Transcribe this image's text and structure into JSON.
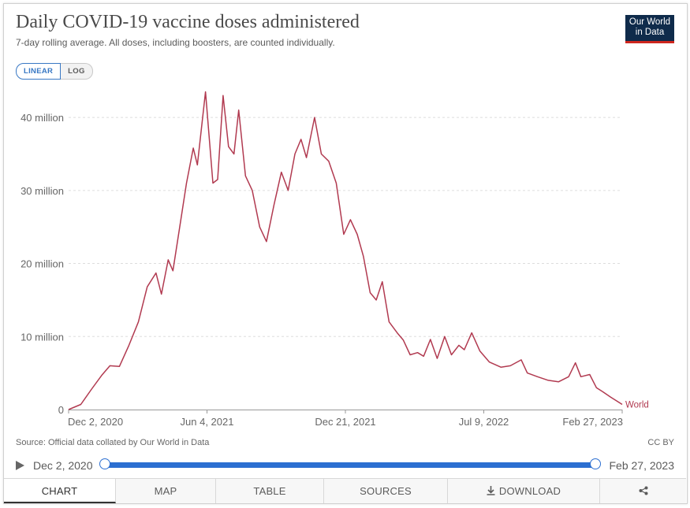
{
  "header": {
    "title": "Daily COVID-19 vaccine doses administered",
    "subtitle": "7-day rolling average. All doses, including boosters, are counted individually.",
    "logo_line1": "Our World",
    "logo_line2": "in Data"
  },
  "scale_toggle": {
    "linear": "LINEAR",
    "log": "LOG",
    "selected": "LINEAR"
  },
  "footer": {
    "source": "Source: Official data collated by Our World in Data",
    "license": "CC BY"
  },
  "timeline": {
    "start": "Dec 2, 2020",
    "end": "Feb 27, 2023"
  },
  "tabs": {
    "chart": "CHART",
    "map": "MAP",
    "table": "TABLE",
    "sources": "SOURCES",
    "download": "DOWNLOAD",
    "share_icon": "share-icon",
    "download_icon": "download-icon"
  },
  "colors": {
    "series": "#b13a50",
    "accent": "#2c6fd1",
    "grid": "#dddddd"
  },
  "chart_data": {
    "type": "line",
    "title": "Daily COVID-19 vaccine doses administered",
    "y_ticks": [
      {
        "value": 0,
        "label": "0"
      },
      {
        "value": 10000000,
        "label": "10 million"
      },
      {
        "value": 20000000,
        "label": "20 million"
      },
      {
        "value": 30000000,
        "label": "30 million"
      },
      {
        "value": 40000000,
        "label": "40 million"
      }
    ],
    "x_ticks": [
      "Dec 2, 2020",
      "Jun 4, 2021",
      "Dec 21, 2021",
      "Jul 9, 2022",
      "Feb 27, 2023"
    ],
    "ylim": [
      0,
      44000000
    ],
    "xlim": [
      "2020-12-02",
      "2023-02-27"
    ],
    "grid": "horizontal dashed",
    "series": [
      {
        "name": "World",
        "points": [
          [
            "2020-12-02",
            0
          ],
          [
            "2020-12-20",
            700000
          ],
          [
            "2021-01-05",
            2800000
          ],
          [
            "2021-01-20",
            4700000
          ],
          [
            "2021-02-01",
            6000000
          ],
          [
            "2021-02-15",
            5900000
          ],
          [
            "2021-03-01",
            8800000
          ],
          [
            "2021-03-15",
            12000000
          ],
          [
            "2021-03-28",
            16800000
          ],
          [
            "2021-04-10",
            18700000
          ],
          [
            "2021-04-18",
            15800000
          ],
          [
            "2021-04-28",
            20500000
          ],
          [
            "2021-05-05",
            19000000
          ],
          [
            "2021-05-15",
            25000000
          ],
          [
            "2021-05-25",
            31000000
          ],
          [
            "2021-06-04",
            35800000
          ],
          [
            "2021-06-10",
            33500000
          ],
          [
            "2021-06-22",
            43500000
          ],
          [
            "2021-07-03",
            31000000
          ],
          [
            "2021-07-10",
            31500000
          ],
          [
            "2021-07-18",
            43000000
          ],
          [
            "2021-07-26",
            36000000
          ],
          [
            "2021-08-03",
            35000000
          ],
          [
            "2021-08-10",
            41000000
          ],
          [
            "2021-08-20",
            32000000
          ],
          [
            "2021-08-30",
            30000000
          ],
          [
            "2021-09-10",
            25000000
          ],
          [
            "2021-09-20",
            23000000
          ],
          [
            "2021-10-01",
            28000000
          ],
          [
            "2021-10-12",
            32500000
          ],
          [
            "2021-10-22",
            30000000
          ],
          [
            "2021-11-01",
            35000000
          ],
          [
            "2021-11-10",
            37000000
          ],
          [
            "2021-11-18",
            34500000
          ],
          [
            "2021-11-30",
            40000000
          ],
          [
            "2021-12-10",
            35000000
          ],
          [
            "2021-12-21",
            34000000
          ],
          [
            "2022-01-01",
            31000000
          ],
          [
            "2022-01-12",
            24000000
          ],
          [
            "2022-01-22",
            26000000
          ],
          [
            "2022-02-01",
            24000000
          ],
          [
            "2022-02-10",
            21000000
          ],
          [
            "2022-02-20",
            16000000
          ],
          [
            "2022-03-01",
            15000000
          ],
          [
            "2022-03-10",
            17500000
          ],
          [
            "2022-03-20",
            12000000
          ],
          [
            "2022-04-01",
            10500000
          ],
          [
            "2022-04-10",
            9500000
          ],
          [
            "2022-04-20",
            7500000
          ],
          [
            "2022-05-01",
            7800000
          ],
          [
            "2022-05-10",
            7300000
          ],
          [
            "2022-05-20",
            9600000
          ],
          [
            "2022-05-30",
            7000000
          ],
          [
            "2022-06-10",
            10000000
          ],
          [
            "2022-06-20",
            7500000
          ],
          [
            "2022-07-01",
            8800000
          ],
          [
            "2022-07-09",
            8200000
          ],
          [
            "2022-07-20",
            10500000
          ],
          [
            "2022-08-01",
            8000000
          ],
          [
            "2022-08-15",
            6500000
          ],
          [
            "2022-09-01",
            5800000
          ],
          [
            "2022-09-15",
            6000000
          ],
          [
            "2022-10-01",
            6800000
          ],
          [
            "2022-10-10",
            5000000
          ],
          [
            "2022-10-25",
            4500000
          ],
          [
            "2022-11-10",
            4000000
          ],
          [
            "2022-11-25",
            3800000
          ],
          [
            "2022-12-10",
            4500000
          ],
          [
            "2022-12-20",
            6400000
          ],
          [
            "2022-12-28",
            4500000
          ],
          [
            "2023-01-10",
            4800000
          ],
          [
            "2023-01-20",
            3000000
          ],
          [
            "2023-01-30",
            2400000
          ],
          [
            "2023-02-10",
            1700000
          ],
          [
            "2023-02-27",
            700000
          ]
        ]
      }
    ]
  }
}
